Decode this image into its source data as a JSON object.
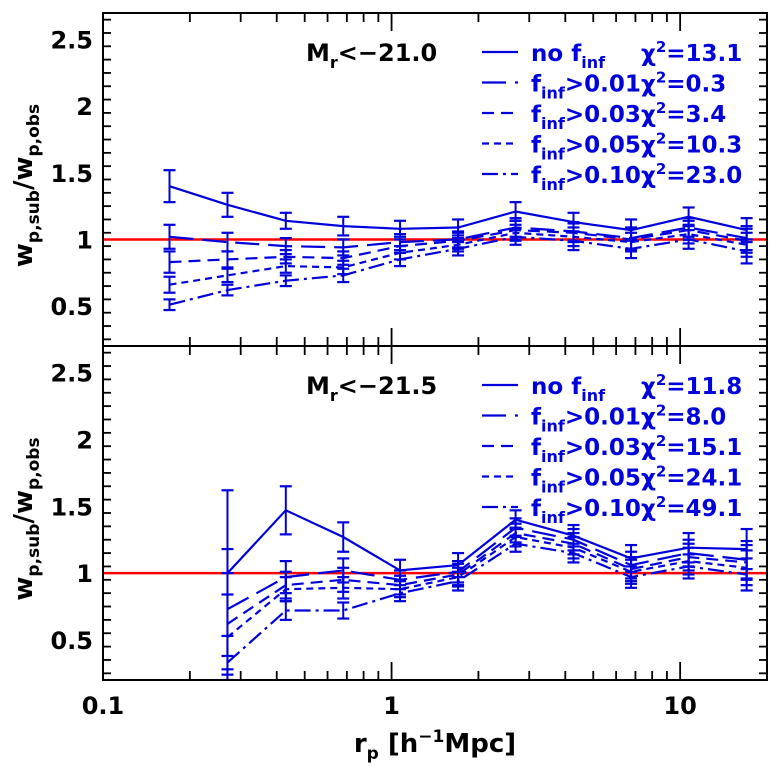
{
  "chart_data": [
    {
      "type": "line",
      "panel": "top",
      "annotation": {
        "base": "M",
        "sub": "r",
        "rest": "<−21.0"
      },
      "ylabel": {
        "base": "w",
        "sub1": "p,sub",
        "slash": "/",
        "base2": "w",
        "sub2": "p,obs"
      },
      "xscale": "log",
      "xlim": [
        0.1,
        20
      ],
      "ylim": [
        0.2,
        2.7
      ],
      "yticks": [
        0.5,
        1,
        1.5,
        2,
        2.5
      ],
      "ytick_labels": [
        "0.5",
        "1",
        "1.5",
        "2",
        "2.5"
      ],
      "reference_line": {
        "y": 1,
        "color": "#ff0000"
      },
      "legend_position": "top-right",
      "series": [
        {
          "label": "no",
          "finf": "f",
          "finf_sub": "inf",
          "cond": "",
          "chi_text": "=13.1",
          "dash": "",
          "x": [
            0.17,
            0.27,
            0.43,
            0.68,
            1.07,
            1.7,
            2.69,
            4.27,
            6.76,
            10.7,
            17.0
          ],
          "y": [
            1.4,
            1.26,
            1.14,
            1.1,
            1.08,
            1.09,
            1.21,
            1.13,
            1.07,
            1.17,
            1.07
          ],
          "err": [
            0.12,
            0.09,
            0.06,
            0.07,
            0.06,
            0.06,
            0.07,
            0.07,
            0.08,
            0.07,
            0.09
          ]
        },
        {
          "label": "",
          "finf": "f",
          "finf_sub": "inf",
          "cond": ">0.01",
          "chi_text": "=0.3",
          "dash": "24,9",
          "x": [
            0.17,
            0.27,
            0.43,
            0.68,
            1.07,
            1.7,
            2.69,
            4.27,
            6.76,
            10.7,
            17.0
          ],
          "y": [
            1.02,
            0.98,
            0.95,
            0.94,
            0.98,
            1.0,
            1.09,
            1.06,
            1.01,
            1.09,
            1.01
          ],
          "err": [
            0.09,
            0.07,
            0.06,
            0.06,
            0.06,
            0.06,
            0.07,
            0.07,
            0.08,
            0.07,
            0.09
          ]
        },
        {
          "label": "",
          "finf": "f",
          "finf_sub": "inf",
          "cond": ">0.03",
          "chi_text": "=3.4",
          "dash": "12,7",
          "x": [
            0.17,
            0.27,
            0.43,
            0.68,
            1.07,
            1.7,
            2.69,
            4.27,
            6.76,
            10.7,
            17.0
          ],
          "y": [
            0.83,
            0.85,
            0.87,
            0.86,
            0.95,
            0.99,
            1.07,
            1.05,
            1.0,
            1.07,
            0.99
          ],
          "err": [
            0.08,
            0.06,
            0.05,
            0.05,
            0.05,
            0.06,
            0.07,
            0.07,
            0.08,
            0.07,
            0.09
          ]
        },
        {
          "label": "",
          "finf": "f",
          "finf_sub": "inf",
          "cond": ">0.05",
          "chi_text": "=10.3",
          "dash": "7,5",
          "x": [
            0.17,
            0.27,
            0.43,
            0.68,
            1.07,
            1.7,
            2.69,
            4.27,
            6.76,
            10.7,
            17.0
          ],
          "y": [
            0.66,
            0.73,
            0.8,
            0.79,
            0.9,
            0.96,
            1.05,
            1.02,
            0.98,
            1.04,
            0.96
          ],
          "err": [
            0.06,
            0.05,
            0.05,
            0.05,
            0.05,
            0.05,
            0.06,
            0.07,
            0.07,
            0.07,
            0.09
          ]
        },
        {
          "label": "",
          "finf": "f",
          "finf_sub": "inf",
          "cond": ">0.10",
          "chi_text": "=23.0",
          "dash": "16,5,3,5",
          "x": [
            0.17,
            0.27,
            0.43,
            0.68,
            1.07,
            1.7,
            2.69,
            4.27,
            6.76,
            10.7,
            17.0
          ],
          "y": [
            0.51,
            0.62,
            0.69,
            0.73,
            0.85,
            0.93,
            1.02,
            0.99,
            0.93,
            1.0,
            0.91
          ],
          "err": [
            0.04,
            0.04,
            0.04,
            0.05,
            0.05,
            0.05,
            0.06,
            0.07,
            0.07,
            0.07,
            0.09
          ]
        }
      ]
    },
    {
      "type": "line",
      "panel": "bottom",
      "annotation": {
        "base": "M",
        "sub": "r",
        "rest": "<−21.5"
      },
      "ylabel": {
        "base": "w",
        "sub1": "p,sub",
        "slash": "/",
        "base2": "w",
        "sub2": "p,obs"
      },
      "xlabel": {
        "base": "r",
        "sub": "p",
        "rest": " [h",
        "sup": "−1",
        "rest2": "Mpc]"
      },
      "xscale": "log",
      "xlim": [
        0.1,
        20
      ],
      "ylim": [
        0.2,
        2.7
      ],
      "xticks": [
        0.1,
        1,
        10
      ],
      "xtick_labels": [
        "0.1",
        "1",
        "10"
      ],
      "yticks": [
        0.5,
        1,
        1.5,
        2,
        2.5
      ],
      "ytick_labels": [
        "0.5",
        "1",
        "1.5",
        "2",
        "2.5"
      ],
      "reference_line": {
        "y": 1,
        "color": "#ff0000"
      },
      "legend_position": "top-right",
      "series": [
        {
          "label": "no",
          "finf": "f",
          "finf_sub": "inf",
          "cond": "",
          "chi_text": "=11.8",
          "dash": "",
          "x": [
            0.27,
            0.43,
            0.68,
            1.07,
            1.7,
            2.69,
            4.27,
            6.76,
            10.7,
            17.0
          ],
          "y": [
            1.0,
            1.47,
            1.27,
            1.02,
            1.06,
            1.4,
            1.28,
            1.11,
            1.19,
            1.18
          ],
          "err": [
            0.62,
            0.18,
            0.11,
            0.08,
            0.09,
            0.07,
            0.08,
            0.1,
            0.11,
            0.15
          ]
        },
        {
          "label": "",
          "finf": "f",
          "finf_sub": "inf",
          "cond": ">0.01",
          "chi_text": "=8.0",
          "dash": "24,9",
          "x": [
            0.27,
            0.43,
            0.68,
            1.07,
            1.7,
            2.69,
            4.27,
            6.76,
            10.7,
            17.0
          ],
          "y": [
            0.73,
            0.97,
            1.02,
            0.95,
            1.01,
            1.34,
            1.25,
            1.06,
            1.15,
            1.1
          ],
          "err": [
            0.45,
            0.12,
            0.09,
            0.07,
            0.08,
            0.07,
            0.08,
            0.1,
            0.1,
            0.14
          ]
        },
        {
          "label": "",
          "finf": "f",
          "finf_sub": "inf",
          "cond": ">0.03",
          "chi_text": "=15.1",
          "dash": "12,7",
          "x": [
            0.27,
            0.43,
            0.68,
            1.07,
            1.7,
            2.69,
            4.27,
            6.76,
            10.7,
            17.0
          ],
          "y": [
            0.62,
            0.91,
            0.95,
            0.91,
            0.99,
            1.3,
            1.22,
            1.03,
            1.12,
            1.08
          ],
          "err": [
            0.38,
            0.1,
            0.09,
            0.07,
            0.08,
            0.07,
            0.08,
            0.09,
            0.1,
            0.13
          ]
        },
        {
          "label": "",
          "finf": "f",
          "finf_sub": "inf",
          "cond": ">0.05",
          "chi_text": "=24.1",
          "dash": "7,5",
          "x": [
            0.27,
            0.43,
            0.68,
            1.07,
            1.7,
            2.69,
            4.27,
            6.76,
            10.7,
            17.0
          ],
          "y": [
            0.52,
            0.88,
            0.89,
            0.88,
            0.97,
            1.27,
            1.19,
            1.01,
            1.09,
            1.04
          ],
          "err": [
            0.32,
            0.09,
            0.08,
            0.06,
            0.07,
            0.07,
            0.08,
            0.09,
            0.1,
            0.13
          ]
        },
        {
          "label": "",
          "finf": "f",
          "finf_sub": "inf",
          "cond": ">0.10",
          "chi_text": "=49.1",
          "dash": "16,5,3,5",
          "x": [
            0.27,
            0.43,
            0.68,
            1.07,
            1.7,
            2.69,
            4.27,
            6.76,
            10.7,
            17.0
          ],
          "y": [
            0.33,
            0.72,
            0.72,
            0.85,
            0.94,
            1.22,
            1.15,
            0.97,
            1.05,
            0.99
          ],
          "err": [
            0.2,
            0.07,
            0.06,
            0.06,
            0.07,
            0.06,
            0.07,
            0.08,
            0.09,
            0.12
          ]
        }
      ]
    }
  ],
  "style": {
    "series_color": "#0000dd",
    "reference_color": "#ff0000",
    "axis_color": "#000000"
  },
  "legend_chi_symbol": "χ",
  "legend_chi_sup": "2"
}
